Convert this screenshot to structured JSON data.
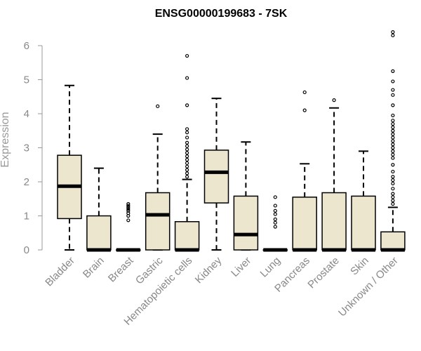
{
  "chart_data": {
    "type": "boxplot",
    "title": "ENSG00000199683 - 7SK",
    "xlabel": "",
    "ylabel": "Expression",
    "ylim": [
      0,
      6.5
    ],
    "yticks": [
      0,
      1,
      2,
      3,
      4,
      5,
      6
    ],
    "box_color": "#ede6cf",
    "categories": [
      "Bladder",
      "Brain",
      "Breast",
      "Gastric",
      "Hematopoietic cells",
      "Kidney",
      "Liver",
      "Lung",
      "Pancreas",
      "Prostate",
      "Skin",
      "Unknown / Other"
    ],
    "boxes": [
      {
        "q1": 0.92,
        "median": 1.87,
        "q3": 2.78,
        "wlo": 0,
        "whi": 4.83,
        "outliers": []
      },
      {
        "q1": 0,
        "median": 0,
        "q3": 1.0,
        "wlo": 0,
        "whi": 2.4,
        "outliers": []
      },
      {
        "q1": 0,
        "median": 0,
        "q3": 0,
        "wlo": 0,
        "whi": 0,
        "outliers": [
          0.87,
          1.0,
          1.08,
          1.15,
          1.2,
          1.25,
          1.3,
          1.35
        ]
      },
      {
        "q1": 0,
        "median": 1.03,
        "q3": 1.68,
        "wlo": 0,
        "whi": 3.4,
        "outliers": [
          4.22
        ]
      },
      {
        "q1": 0,
        "median": 0,
        "q3": 0.83,
        "wlo": 0,
        "whi": 2.07,
        "outliers": [
          2.15,
          2.25,
          2.35,
          2.45,
          2.55,
          2.65,
          2.75,
          2.85,
          2.95,
          3.05,
          3.15,
          3.3,
          3.45,
          3.55,
          4.25,
          5.05,
          5.7
        ]
      },
      {
        "q1": 1.38,
        "median": 2.28,
        "q3": 2.93,
        "wlo": 0,
        "whi": 4.45,
        "outliers": []
      },
      {
        "q1": 0,
        "median": 0.45,
        "q3": 1.58,
        "wlo": 0,
        "whi": 3.17,
        "outliers": []
      },
      {
        "q1": 0,
        "median": 0,
        "q3": 0,
        "wlo": 0,
        "whi": 0,
        "outliers": [
          0.68,
          0.8,
          0.9,
          1.05,
          1.15,
          1.3,
          1.55
        ]
      },
      {
        "q1": 0,
        "median": 0,
        "q3": 1.55,
        "wlo": 0,
        "whi": 2.53,
        "outliers": [
          4.1,
          4.63
        ]
      },
      {
        "q1": 0,
        "median": 0,
        "q3": 1.68,
        "wlo": 0,
        "whi": 4.17,
        "outliers": [
          4.4
        ]
      },
      {
        "q1": 0,
        "median": 0,
        "q3": 1.58,
        "wlo": 0,
        "whi": 2.9,
        "outliers": []
      },
      {
        "q1": 0,
        "median": 0,
        "q3": 0.53,
        "wlo": 0,
        "whi": 1.25,
        "outliers": [
          1.35,
          1.45,
          1.55,
          1.65,
          1.8,
          1.95,
          2.05,
          2.15,
          2.3,
          2.5,
          2.7,
          2.8,
          2.9,
          3.0,
          3.1,
          3.2,
          3.3,
          3.4,
          3.5,
          3.6,
          3.7,
          3.8,
          3.95,
          4.25,
          4.55,
          4.7,
          4.95,
          5.25,
          6.3,
          6.4
        ]
      }
    ]
  }
}
